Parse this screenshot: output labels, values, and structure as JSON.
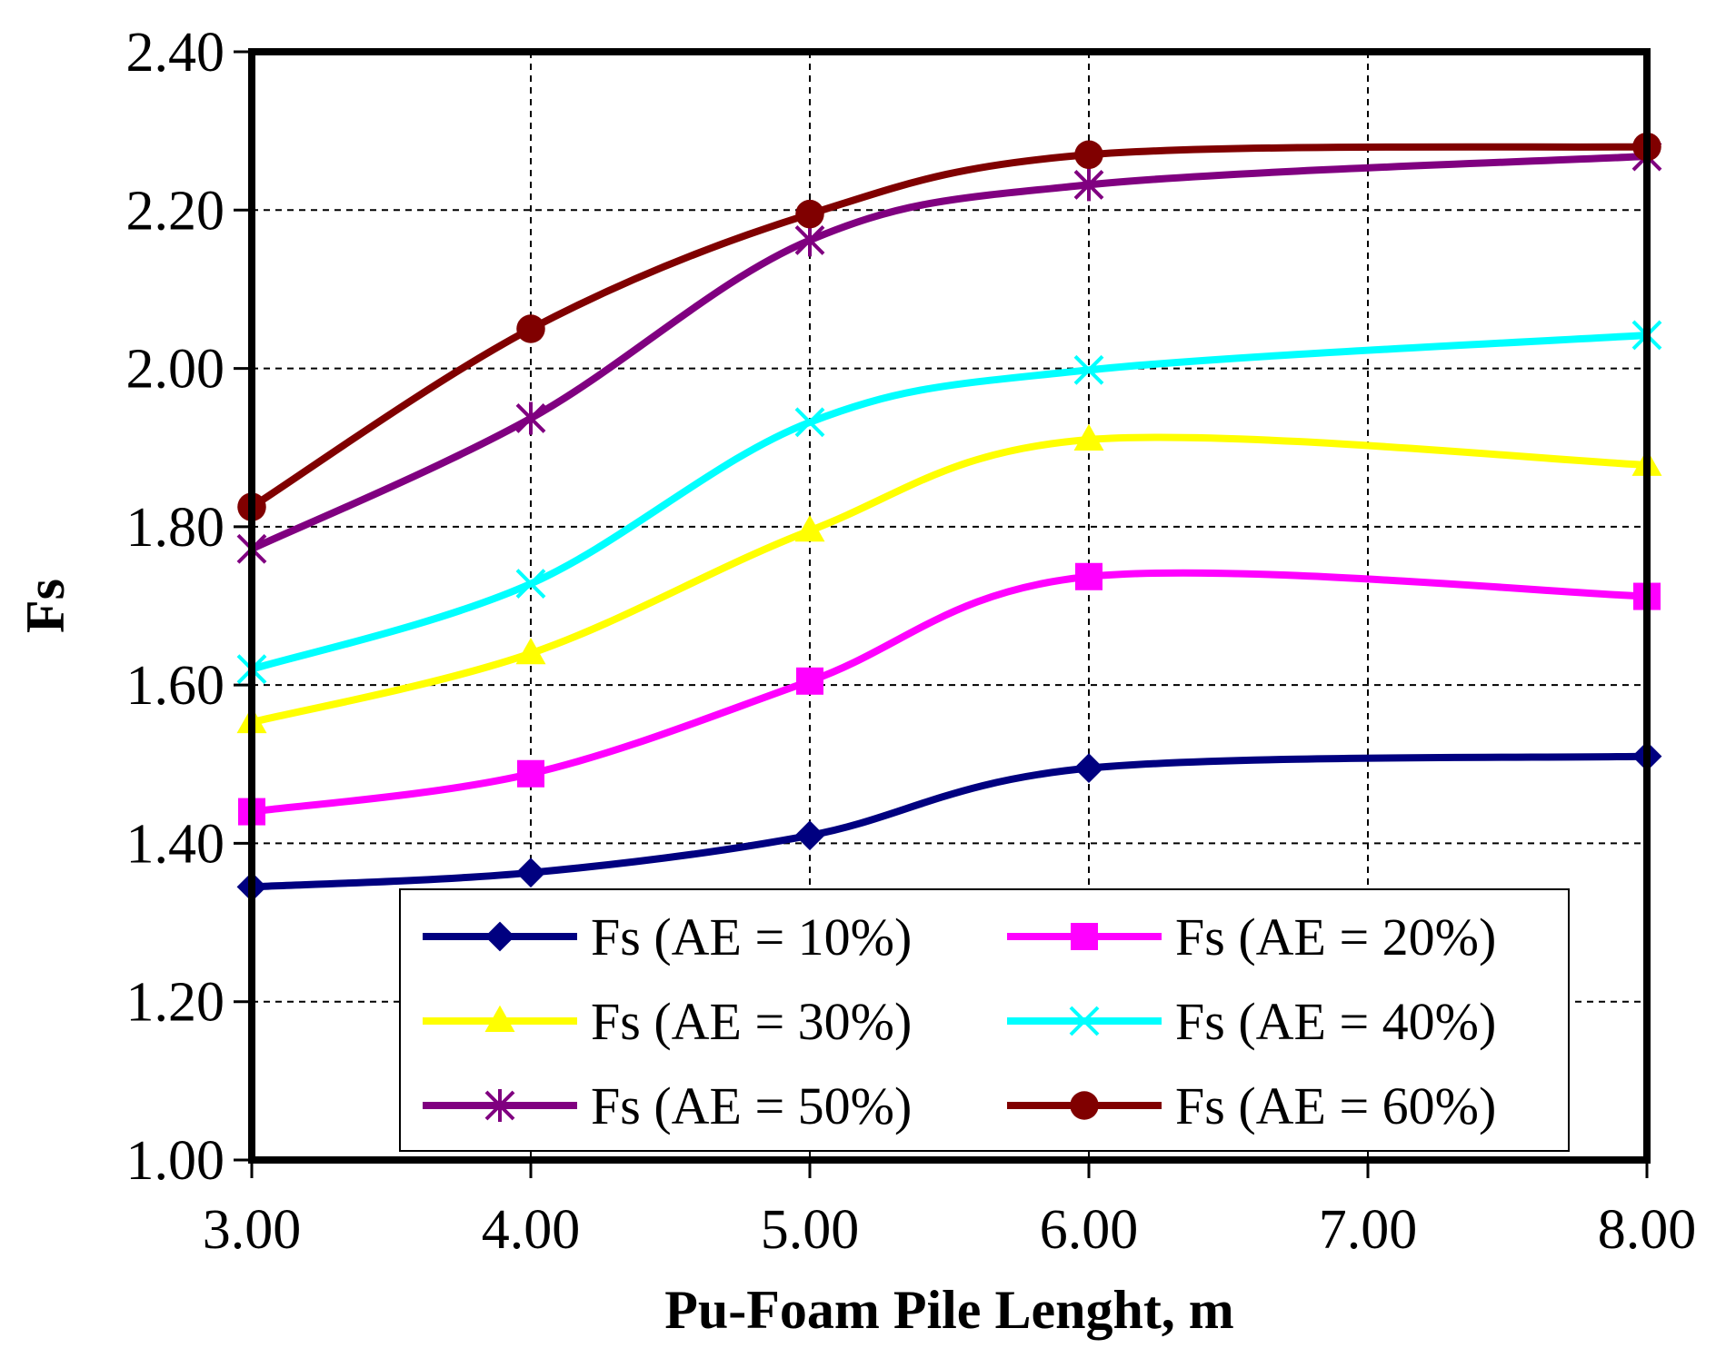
{
  "chart_data": {
    "type": "line",
    "xlabel": "Pu-Foam Pile Lenght, m",
    "ylabel": "Fs",
    "xlim": [
      3.0,
      8.0
    ],
    "ylim": [
      1.0,
      2.4
    ],
    "x_ticks": [
      3.0,
      4.0,
      5.0,
      6.0,
      7.0,
      8.0
    ],
    "y_ticks": [
      1.0,
      1.2,
      1.4,
      1.6,
      1.8,
      2.0,
      2.2,
      2.4
    ],
    "x_tick_labels": [
      "3.00",
      "4.00",
      "5.00",
      "6.00",
      "7.00",
      "8.00"
    ],
    "y_tick_labels": [
      "1.00",
      "1.20",
      "1.40",
      "1.60",
      "1.80",
      "2.00",
      "2.20",
      "2.40"
    ],
    "grid": true,
    "legend_position": "bottom-center inside",
    "x": [
      3.0,
      4.0,
      5.0,
      6.0,
      8.0
    ],
    "series": [
      {
        "name": "Fs (AE = 10%)",
        "color": "#000080",
        "marker": "diamond",
        "values": [
          1.345,
          1.363,
          1.41,
          1.495,
          1.51
        ]
      },
      {
        "name": "Fs (AE = 20%)",
        "color": "#ff00ff",
        "marker": "square",
        "values": [
          1.44,
          1.488,
          1.605,
          1.737,
          1.712
        ]
      },
      {
        "name": "Fs (AE = 30%)",
        "color": "#ffff00",
        "marker": "triangle",
        "values": [
          1.553,
          1.64,
          1.795,
          1.91,
          1.878
        ]
      },
      {
        "name": "Fs (AE = 40%)",
        "color": "#00ffff",
        "marker": "x",
        "values": [
          1.62,
          1.728,
          1.932,
          1.998,
          2.042
        ]
      },
      {
        "name": "Fs (AE = 50%)",
        "color": "#800080",
        "marker": "star",
        "values": [
          1.772,
          1.937,
          2.162,
          2.232,
          2.268
        ]
      },
      {
        "name": "Fs (AE = 60%)",
        "color": "#800000",
        "marker": "circle",
        "values": [
          1.825,
          2.05,
          2.195,
          2.27,
          2.28
        ]
      }
    ]
  }
}
